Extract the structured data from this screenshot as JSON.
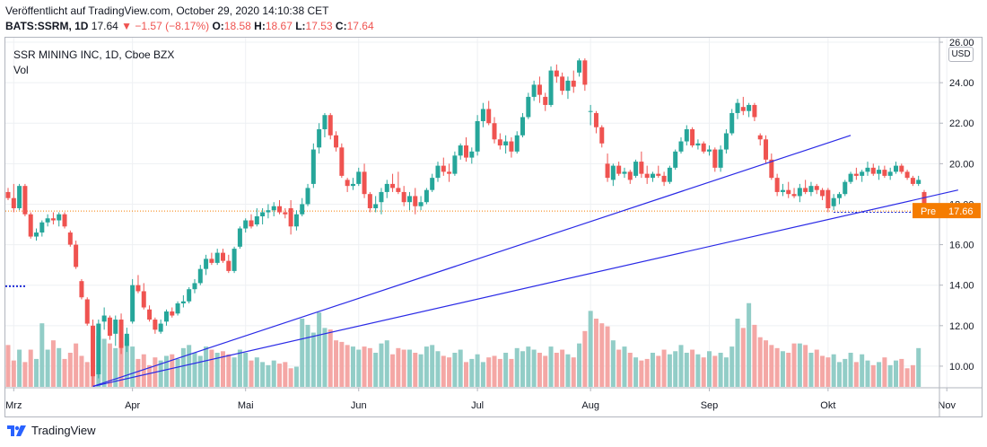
{
  "header": {
    "published": "Veröffentlicht auf TradingView.com, October 29, 2020 14:10:38 CET",
    "symbol": "BATS:SSRM, 1D",
    "last": "17.64",
    "change": "▼ −1.57 (−8.17%)",
    "o_label": "O:",
    "o": "18.58",
    "h_label": "H:",
    "h": "18.67",
    "l_label": "L:",
    "l": "17.53",
    "c_label": "C:",
    "c": "17.64"
  },
  "legend": {
    "title": "SSR MINING INC, 1D, Cboe BZX",
    "indicator": "Vol"
  },
  "currency": "USD",
  "price_tag": {
    "label": "Pre",
    "value": "17.66"
  },
  "branding": "TradingView",
  "colors": {
    "up": "#26a69a",
    "down": "#ef5350",
    "up_vol": "#92cdc7",
    "down_vol": "#f4a7a5",
    "trend": "#2a2ae6",
    "pre": "#f57c00"
  },
  "chart_data": {
    "type": "candlestick",
    "title": "SSR MINING INC, 1D, Cboe BZX",
    "ylim": [
      8.8,
      26.0
    ],
    "y_ticks": [
      10,
      12,
      14,
      16,
      18,
      20,
      22,
      24,
      26
    ],
    "y_tick_labels": [
      "10.00",
      "12.00",
      "14.00",
      "16.00",
      "18.00",
      "20.00",
      "22.00",
      "24.00",
      "26.00"
    ],
    "x_labels": [
      {
        "label": "Mrz",
        "index": 1
      },
      {
        "label": "Apr",
        "index": 22
      },
      {
        "label": "Mai",
        "index": 42
      },
      {
        "label": "Jun",
        "index": 62
      },
      {
        "label": "Jul",
        "index": 83
      },
      {
        "label": "Aug",
        "index": 103
      },
      {
        "label": "Sep",
        "index": 124
      },
      {
        "label": "Okt",
        "index": 145
      },
      {
        "label": "Nov",
        "index": 166
      }
    ],
    "candles": [
      [
        18.6,
        18.8,
        18.2,
        18.3
      ],
      [
        18.3,
        19.0,
        17.6,
        17.8
      ],
      [
        17.8,
        19.0,
        17.7,
        18.9
      ],
      [
        18.9,
        19.0,
        17.4,
        17.5
      ],
      [
        17.5,
        17.6,
        16.3,
        16.4
      ],
      [
        16.4,
        16.8,
        16.2,
        16.6
      ],
      [
        16.6,
        17.2,
        16.4,
        17.1
      ],
      [
        17.1,
        17.5,
        16.9,
        17.3
      ],
      [
        17.3,
        17.6,
        17.0,
        17.2
      ],
      [
        17.2,
        17.6,
        16.9,
        17.5
      ],
      [
        17.5,
        17.6,
        16.8,
        16.9
      ],
      [
        16.6,
        16.7,
        15.9,
        16.0
      ],
      [
        16.0,
        16.2,
        14.8,
        14.9
      ],
      [
        14.2,
        14.3,
        13.3,
        13.4
      ],
      [
        13.3,
        13.4,
        12.0,
        12.1
      ],
      [
        12.0,
        12.3,
        9.0,
        9.5
      ],
      [
        9.6,
        12.3,
        9.4,
        12.1
      ],
      [
        12.2,
        12.9,
        11.8,
        12.5
      ],
      [
        12.4,
        12.5,
        11.3,
        11.5
      ],
      [
        11.6,
        12.5,
        11.0,
        12.3
      ],
      [
        12.3,
        12.6,
        10.6,
        10.9
      ],
      [
        11.0,
        11.9,
        10.7,
        11.6
      ],
      [
        12.2,
        14.3,
        12.1,
        14.0
      ],
      [
        14.0,
        14.5,
        13.6,
        13.7
      ],
      [
        13.7,
        14.1,
        12.8,
        12.9
      ],
      [
        12.8,
        13.0,
        12.2,
        12.3
      ],
      [
        12.3,
        12.4,
        11.6,
        11.8
      ],
      [
        11.7,
        12.3,
        11.6,
        12.1
      ],
      [
        12.2,
        12.8,
        12.0,
        12.7
      ],
      [
        12.7,
        12.9,
        12.4,
        12.5
      ],
      [
        12.6,
        13.2,
        12.5,
        13.1
      ],
      [
        13.1,
        13.5,
        12.9,
        13.2
      ],
      [
        13.2,
        13.9,
        13.1,
        13.8
      ],
      [
        13.8,
        14.3,
        13.6,
        14.1
      ],
      [
        14.1,
        15.0,
        14.0,
        14.8
      ],
      [
        14.8,
        15.5,
        14.5,
        15.3
      ],
      [
        15.3,
        15.6,
        15.0,
        15.1
      ],
      [
        15.1,
        15.8,
        15.0,
        15.6
      ],
      [
        15.6,
        15.8,
        15.1,
        15.2
      ],
      [
        15.2,
        15.5,
        14.6,
        14.7
      ],
      [
        14.7,
        15.9,
        14.6,
        15.8
      ],
      [
        15.9,
        16.9,
        15.8,
        16.8
      ],
      [
        16.8,
        17.3,
        16.6,
        17.2
      ],
      [
        17.2,
        17.5,
        16.8,
        16.9
      ],
      [
        17.0,
        17.8,
        16.9,
        17.4
      ],
      [
        17.4,
        17.8,
        17.0,
        17.6
      ],
      [
        17.6,
        18.0,
        17.3,
        17.7
      ],
      [
        17.7,
        18.1,
        17.4,
        17.9
      ],
      [
        17.9,
        18.2,
        17.5,
        17.6
      ],
      [
        17.6,
        17.8,
        17.3,
        17.5
      ],
      [
        17.8,
        18.2,
        16.5,
        16.9
      ],
      [
        16.9,
        17.7,
        16.7,
        17.5
      ],
      [
        17.5,
        18.3,
        17.4,
        18.0
      ],
      [
        18.0,
        19.0,
        17.9,
        18.8
      ],
      [
        19.0,
        21.0,
        18.8,
        20.7
      ],
      [
        20.8,
        22.0,
        20.5,
        21.7
      ],
      [
        21.7,
        22.5,
        21.3,
        22.4
      ],
      [
        22.4,
        22.5,
        21.2,
        21.4
      ],
      [
        21.4,
        21.6,
        20.6,
        20.8
      ],
      [
        20.8,
        21.0,
        19.3,
        19.4
      ],
      [
        19.2,
        19.3,
        18.6,
        18.9
      ],
      [
        18.9,
        19.3,
        18.7,
        19.0
      ],
      [
        19.0,
        19.8,
        18.9,
        19.6
      ],
      [
        19.6,
        20.0,
        18.3,
        18.5
      ],
      [
        18.5,
        18.6,
        17.6,
        17.8
      ],
      [
        17.8,
        18.4,
        17.6,
        18.0
      ],
      [
        18.1,
        18.8,
        17.5,
        18.6
      ],
      [
        18.6,
        19.2,
        18.3,
        19.0
      ],
      [
        19.0,
        19.5,
        18.6,
        18.8
      ],
      [
        18.8,
        19.6,
        18.5,
        18.6
      ],
      [
        18.6,
        18.9,
        17.9,
        18.1
      ],
      [
        18.1,
        18.6,
        17.7,
        18.4
      ],
      [
        18.4,
        18.8,
        17.5,
        17.9
      ],
      [
        17.9,
        18.4,
        17.7,
        18.1
      ],
      [
        18.1,
        18.8,
        18.0,
        18.7
      ],
      [
        18.7,
        19.5,
        18.6,
        19.3
      ],
      [
        19.3,
        20.1,
        19.1,
        19.9
      ],
      [
        19.9,
        20.3,
        19.4,
        19.6
      ],
      [
        19.6,
        20.0,
        19.1,
        19.5
      ],
      [
        19.5,
        20.6,
        19.4,
        20.4
      ],
      [
        20.4,
        21.0,
        20.2,
        20.9
      ],
      [
        20.9,
        21.3,
        20.1,
        20.3
      ],
      [
        20.3,
        20.8,
        20.0,
        20.6
      ],
      [
        20.6,
        22.4,
        20.4,
        22.1
      ],
      [
        22.1,
        23.0,
        21.8,
        22.7
      ],
      [
        22.7,
        23.1,
        21.9,
        22.0
      ],
      [
        22.0,
        22.3,
        21.0,
        21.2
      ],
      [
        21.2,
        21.5,
        20.7,
        20.9
      ],
      [
        20.9,
        21.4,
        20.5,
        21.1
      ],
      [
        21.1,
        21.3,
        20.3,
        20.6
      ],
      [
        20.6,
        21.6,
        20.5,
        21.4
      ],
      [
        21.4,
        22.5,
        21.3,
        22.3
      ],
      [
        22.3,
        23.5,
        22.2,
        23.3
      ],
      [
        23.3,
        24.1,
        23.1,
        23.9
      ],
      [
        23.9,
        24.3,
        23.0,
        23.4
      ],
      [
        23.3,
        23.5,
        22.6,
        22.9
      ],
      [
        22.9,
        24.8,
        22.8,
        24.6
      ],
      [
        24.6,
        24.9,
        24.0,
        24.3
      ],
      [
        24.3,
        24.5,
        23.4,
        23.6
      ],
      [
        23.6,
        24.3,
        23.2,
        24.1
      ],
      [
        24.1,
        24.6,
        23.5,
        23.8
      ],
      [
        24.5,
        25.2,
        24.3,
        25.1
      ],
      [
        25.1,
        25.2,
        23.6,
        23.9
      ],
      [
        22.6,
        22.9,
        21.9,
        22.6
      ],
      [
        22.5,
        22.6,
        21.5,
        21.8
      ],
      [
        21.8,
        21.9,
        20.8,
        21.0
      ],
      [
        20.0,
        20.5,
        19.1,
        19.3
      ],
      [
        19.2,
        20.0,
        18.9,
        19.9
      ],
      [
        19.9,
        20.1,
        19.4,
        19.5
      ],
      [
        19.5,
        19.8,
        19.3,
        19.6
      ],
      [
        19.6,
        19.7,
        19.0,
        19.2
      ],
      [
        19.4,
        20.2,
        19.3,
        20.1
      ],
      [
        20.1,
        20.6,
        19.3,
        19.5
      ],
      [
        19.5,
        19.9,
        19.0,
        19.3
      ],
      [
        19.3,
        19.6,
        19.1,
        19.5
      ],
      [
        19.5,
        19.9,
        19.3,
        19.4
      ],
      [
        19.4,
        19.6,
        18.9,
        19.1
      ],
      [
        19.1,
        19.9,
        19.0,
        19.8
      ],
      [
        19.8,
        20.7,
        19.7,
        20.6
      ],
      [
        20.6,
        21.3,
        20.5,
        21.1
      ],
      [
        21.1,
        21.9,
        20.9,
        21.7
      ],
      [
        21.7,
        21.8,
        20.8,
        20.9
      ],
      [
        20.9,
        21.2,
        20.7,
        21.0
      ],
      [
        21.0,
        21.1,
        20.5,
        20.6
      ],
      [
        20.6,
        20.9,
        20.4,
        20.7
      ],
      [
        20.7,
        20.8,
        19.6,
        19.8
      ],
      [
        19.8,
        20.9,
        19.6,
        20.7
      ],
      [
        20.7,
        21.7,
        20.5,
        21.5
      ],
      [
        21.5,
        22.7,
        21.4,
        22.5
      ],
      [
        22.5,
        23.2,
        22.2,
        23.0
      ],
      [
        22.8,
        23.3,
        22.4,
        22.6
      ],
      [
        22.6,
        23.0,
        22.3,
        22.9
      ],
      [
        22.9,
        23.0,
        22.1,
        22.3
      ],
      [
        21.4,
        21.5,
        20.9,
        21.2
      ],
      [
        21.2,
        21.4,
        20.0,
        20.2
      ],
      [
        20.2,
        20.5,
        19.2,
        19.3
      ],
      [
        19.3,
        19.5,
        18.4,
        18.6
      ],
      [
        18.6,
        19.0,
        18.4,
        18.7
      ],
      [
        18.7,
        19.1,
        18.3,
        18.5
      ],
      [
        18.5,
        18.8,
        18.3,
        18.4
      ],
      [
        18.4,
        19.0,
        18.1,
        18.8
      ],
      [
        18.8,
        19.2,
        18.5,
        18.6
      ],
      [
        18.6,
        19.1,
        18.4,
        18.9
      ],
      [
        18.9,
        19.0,
        18.5,
        18.7
      ],
      [
        18.7,
        18.8,
        18.2,
        18.4
      ],
      [
        18.7,
        18.8,
        17.6,
        17.8
      ],
      [
        17.9,
        18.5,
        17.7,
        18.3
      ],
      [
        18.3,
        18.6,
        18.0,
        18.5
      ],
      [
        18.5,
        19.2,
        18.4,
        19.1
      ],
      [
        19.1,
        19.6,
        19.0,
        19.5
      ],
      [
        19.5,
        19.8,
        19.2,
        19.4
      ],
      [
        19.4,
        19.7,
        19.1,
        19.6
      ],
      [
        19.6,
        20.1,
        19.4,
        19.8
      ],
      [
        19.8,
        20.0,
        19.4,
        19.5
      ],
      [
        19.5,
        19.9,
        19.2,
        19.7
      ],
      [
        19.7,
        19.9,
        19.3,
        19.4
      ],
      [
        19.4,
        19.8,
        19.2,
        19.6
      ],
      [
        19.6,
        20.1,
        19.5,
        19.9
      ],
      [
        19.9,
        20.0,
        19.5,
        19.6
      ],
      [
        19.6,
        19.7,
        19.2,
        19.3
      ],
      [
        19.3,
        19.4,
        18.9,
        19.0
      ],
      [
        19.0,
        19.4,
        18.9,
        19.2
      ],
      [
        18.6,
        18.7,
        17.5,
        17.6
      ]
    ],
    "volume": [
      0.27,
      0.17,
      0.24,
      0.16,
      0.24,
      0.18,
      0.41,
      0.24,
      0.3,
      0.25,
      0.18,
      0.22,
      0.28,
      0.2,
      0.16,
      0.2,
      0.33,
      0.31,
      0.28,
      0.25,
      0.29,
      0.32,
      0.26,
      0.18,
      0.21,
      0.14,
      0.19,
      0.17,
      0.2,
      0.21,
      0.18,
      0.25,
      0.27,
      0.22,
      0.2,
      0.26,
      0.24,
      0.22,
      0.23,
      0.21,
      0.19,
      0.24,
      0.22,
      0.17,
      0.19,
      0.16,
      0.14,
      0.17,
      0.15,
      0.16,
      0.12,
      0.13,
      0.44,
      0.4,
      0.35,
      0.48,
      0.38,
      0.37,
      0.3,
      0.29,
      0.27,
      0.26,
      0.24,
      0.26,
      0.25,
      0.22,
      0.28,
      0.3,
      0.21,
      0.25,
      0.24,
      0.24,
      0.22,
      0.21,
      0.26,
      0.27,
      0.23,
      0.2,
      0.19,
      0.22,
      0.24,
      0.16,
      0.18,
      0.21,
      0.16,
      0.19,
      0.2,
      0.18,
      0.22,
      0.18,
      0.25,
      0.23,
      0.26,
      0.24,
      0.22,
      0.2,
      0.26,
      0.22,
      0.24,
      0.21,
      0.19,
      0.28,
      0.36,
      0.49,
      0.44,
      0.41,
      0.39,
      0.3,
      0.24,
      0.26,
      0.22,
      0.19,
      0.17,
      0.18,
      0.22,
      0.2,
      0.24,
      0.21,
      0.23,
      0.27,
      0.22,
      0.24,
      0.21,
      0.19,
      0.23,
      0.2,
      0.22,
      0.19,
      0.26,
      0.44,
      0.38,
      0.54,
      0.4,
      0.32,
      0.3,
      0.27,
      0.25,
      0.23,
      0.22,
      0.28,
      0.28,
      0.27,
      0.22,
      0.24,
      0.2,
      0.19,
      0.21,
      0.16,
      0.18,
      0.22,
      0.16,
      0.21,
      0.17,
      0.14,
      0.16,
      0.19,
      0.14,
      0.17,
      0.18,
      0.12,
      0.14,
      0.25
    ],
    "trendlines": [
      {
        "from": [
          15,
          9.0
        ],
        "to": [
          149,
          21.4
        ]
      },
      {
        "from": [
          15,
          9.0
        ],
        "to": [
          168,
          18.7
        ]
      }
    ],
    "reference_lines": [
      {
        "value": 17.66,
        "style": "dotted"
      },
      {
        "value": 17.6,
        "style": "dashed-from-index",
        "start_index": 146
      },
      {
        "value": 13.95,
        "style": "dashed-left"
      }
    ]
  }
}
